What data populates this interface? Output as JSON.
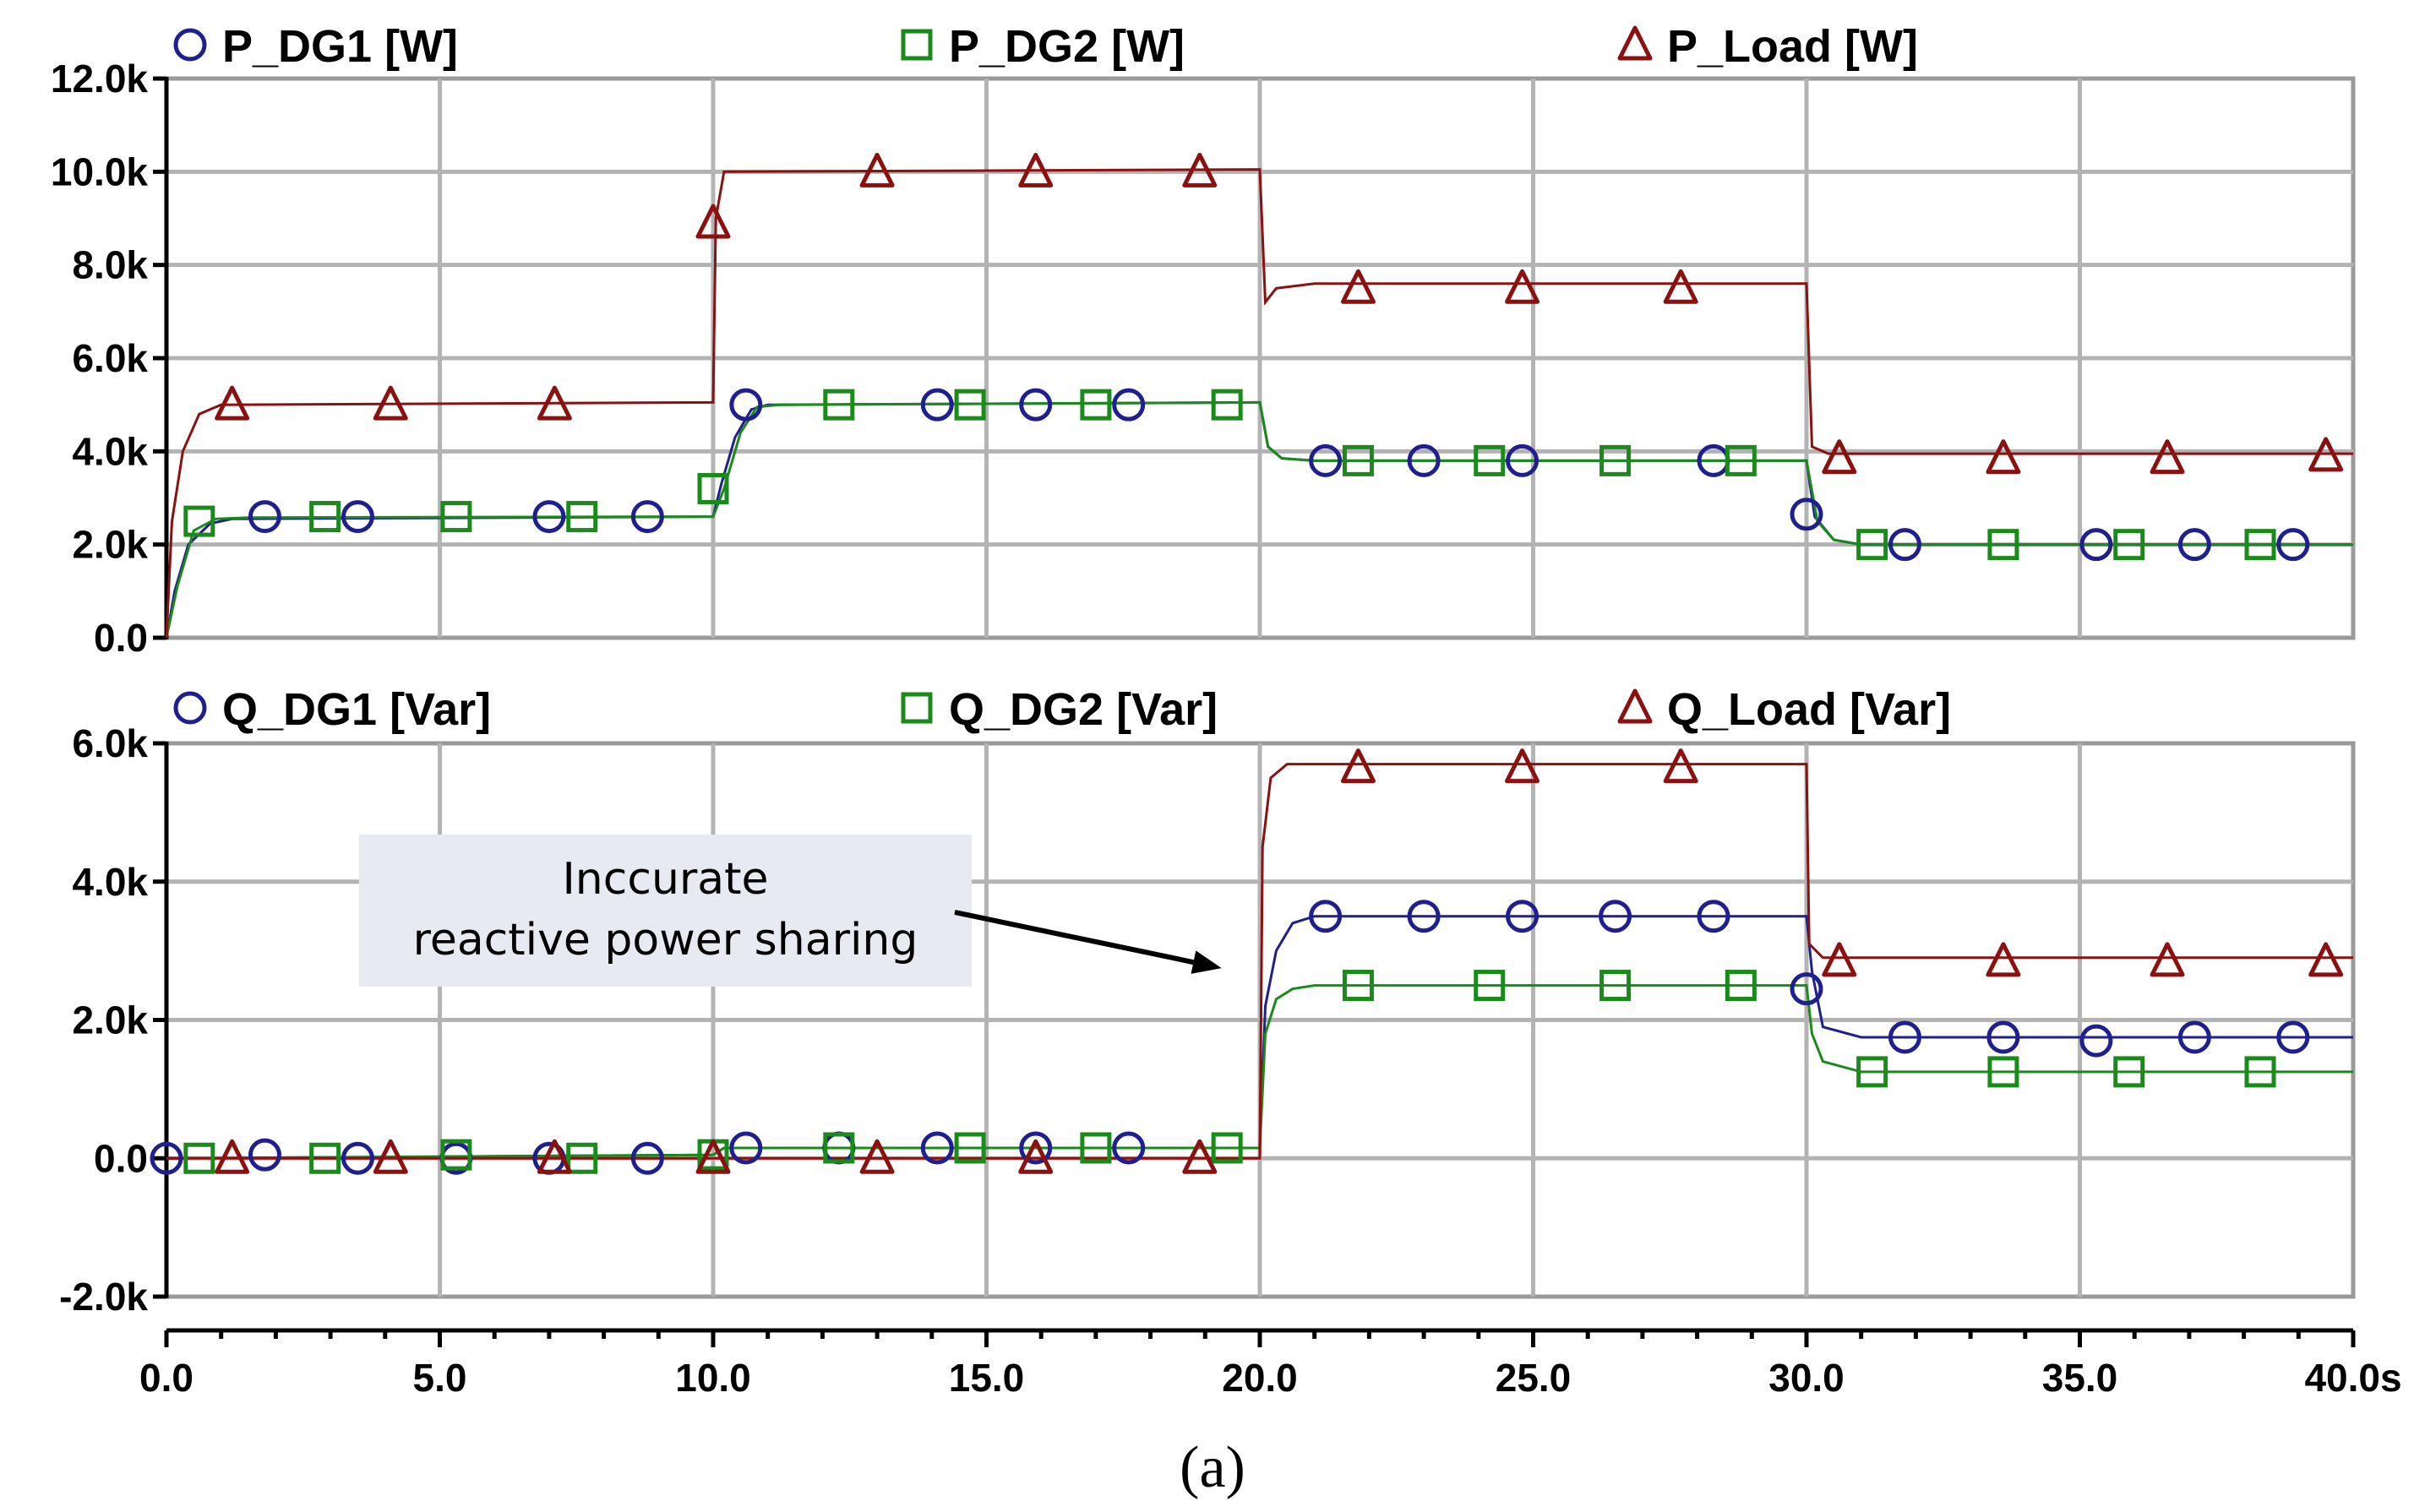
{
  "chart_data": [
    {
      "type": "line",
      "legend_position": "top",
      "x_range": [
        0,
        40
      ],
      "ylim": [
        0,
        12000
      ],
      "y_ticks": [
        {
          "value": 0,
          "label": "0.0"
        },
        {
          "value": 2000,
          "label": "2.0k"
        },
        {
          "value": 4000,
          "label": "4.0k"
        },
        {
          "value": 6000,
          "label": "6.0k"
        },
        {
          "value": 8000,
          "label": "8.0k"
        },
        {
          "value": 10000,
          "label": "10.0k"
        },
        {
          "value": 12000,
          "label": "12.0k"
        }
      ],
      "series": [
        {
          "name": "P_DG1 [W]",
          "color": "#1f1f8f",
          "marker": "circle",
          "line": [
            [
              0,
              0
            ],
            [
              0.15,
              1000
            ],
            [
              0.4,
              2000
            ],
            [
              0.8,
              2450
            ],
            [
              1.2,
              2550
            ],
            [
              10,
              2600
            ],
            [
              10.15,
              3300
            ],
            [
              10.4,
              4300
            ],
            [
              10.7,
              4900
            ],
            [
              11,
              5000
            ],
            [
              20,
              5050
            ],
            [
              20.15,
              4100
            ],
            [
              20.4,
              3850
            ],
            [
              21,
              3800
            ],
            [
              30,
              3800
            ],
            [
              30.15,
              2600
            ],
            [
              30.5,
              2100
            ],
            [
              31,
              2000
            ],
            [
              40,
              2000
            ]
          ],
          "markers": [
            [
              1.8,
              2600
            ],
            [
              3.5,
              2600
            ],
            [
              7,
              2600
            ],
            [
              8.8,
              2600
            ],
            [
              10.6,
              5000
            ],
            [
              14.1,
              5000
            ],
            [
              15.9,
              5000
            ],
            [
              17.6,
              5000
            ],
            [
              21.2,
              3800
            ],
            [
              23,
              3800
            ],
            [
              24.8,
              3800
            ],
            [
              28.3,
              3800
            ],
            [
              30,
              2650
            ],
            [
              31.8,
              2000
            ],
            [
              35.3,
              2000
            ],
            [
              37.1,
              2000
            ],
            [
              38.9,
              2000
            ]
          ]
        },
        {
          "name": "P_DG2 [W]",
          "color": "#1a8a1a",
          "marker": "square",
          "line": [
            [
              0,
              0
            ],
            [
              0.2,
              1100
            ],
            [
              0.5,
              2300
            ],
            [
              0.9,
              2550
            ],
            [
              1.5,
              2580
            ],
            [
              10,
              2600
            ],
            [
              10.2,
              3200
            ],
            [
              10.5,
              4400
            ],
            [
              10.8,
              4950
            ],
            [
              11.2,
              5000
            ],
            [
              20,
              5050
            ],
            [
              20.15,
              4100
            ],
            [
              20.4,
              3850
            ],
            [
              21,
              3800
            ],
            [
              30,
              3800
            ],
            [
              30.2,
              2500
            ],
            [
              30.5,
              2100
            ],
            [
              31,
              2000
            ],
            [
              40,
              2000
            ]
          ],
          "markers": [
            [
              0.6,
              2500
            ],
            [
              2.9,
              2600
            ],
            [
              5.3,
              2600
            ],
            [
              7.6,
              2600
            ],
            [
              10,
              3200
            ],
            [
              12.3,
              5000
            ],
            [
              14.7,
              5000
            ],
            [
              17,
              5000
            ],
            [
              19.4,
              5000
            ],
            [
              21.8,
              3800
            ],
            [
              24.2,
              3800
            ],
            [
              26.5,
              3800
            ],
            [
              28.8,
              3800
            ],
            [
              31.2,
              2000
            ],
            [
              33.6,
              2000
            ],
            [
              35.9,
              2000
            ],
            [
              38.3,
              2000
            ]
          ]
        },
        {
          "name": "P_Load [W]",
          "color": "#8b1010",
          "marker": "triangle",
          "line": [
            [
              0,
              0
            ],
            [
              0.1,
              2500
            ],
            [
              0.3,
              4000
            ],
            [
              0.6,
              4800
            ],
            [
              1,
              5000
            ],
            [
              10,
              5050
            ],
            [
              10.05,
              9000
            ],
            [
              10.2,
              10000
            ],
            [
              20,
              10050
            ],
            [
              20.1,
              7200
            ],
            [
              20.3,
              7500
            ],
            [
              21,
              7600
            ],
            [
              30,
              7600
            ],
            [
              30.1,
              4100
            ],
            [
              30.4,
              3950
            ],
            [
              40,
              3950
            ]
          ],
          "markers": [
            [
              1.2,
              5000
            ],
            [
              4.1,
              5000
            ],
            [
              7.1,
              5000
            ],
            [
              10,
              8900
            ],
            [
              13,
              10000
            ],
            [
              15.9,
              10000
            ],
            [
              18.9,
              10000
            ],
            [
              21.8,
              7500
            ],
            [
              24.8,
              7500
            ],
            [
              27.7,
              7500
            ],
            [
              30.6,
              3850
            ],
            [
              33.6,
              3850
            ],
            [
              36.6,
              3850
            ],
            [
              39.5,
              3900
            ]
          ]
        }
      ]
    },
    {
      "type": "line",
      "legend_position": "top",
      "x_range": [
        0,
        40
      ],
      "ylim": [
        -2000,
        6000
      ],
      "xlabel_ticks": [
        {
          "value": 0,
          "label": "0.0"
        },
        {
          "value": 5,
          "label": "5.0"
        },
        {
          "value": 10,
          "label": "10.0"
        },
        {
          "value": 15,
          "label": "15.0"
        },
        {
          "value": 20,
          "label": "20.0"
        },
        {
          "value": 25,
          "label": "25.0"
        },
        {
          "value": 30,
          "label": "30.0"
        },
        {
          "value": 35,
          "label": "35.0"
        },
        {
          "value": 40,
          "label": "40.0s"
        }
      ],
      "y_ticks": [
        {
          "value": -2000,
          "label": "-2.0k"
        },
        {
          "value": 0,
          "label": "0.0"
        },
        {
          "value": 2000,
          "label": "2.0k"
        },
        {
          "value": 4000,
          "label": "4.0k"
        },
        {
          "value": 6000,
          "label": "6.0k"
        }
      ],
      "series": [
        {
          "name": "Q_DG1 [Var]",
          "color": "#1f1f8f",
          "marker": "circle",
          "line": [
            [
              0,
              0
            ],
            [
              10,
              50
            ],
            [
              10.2,
              150
            ],
            [
              20,
              150
            ],
            [
              20.1,
              2200
            ],
            [
              20.3,
              3000
            ],
            [
              20.6,
              3400
            ],
            [
              21,
              3500
            ],
            [
              30,
              3500
            ],
            [
              30.1,
              2700
            ],
            [
              30.3,
              1900
            ],
            [
              31,
              1750
            ],
            [
              40,
              1750
            ]
          ],
          "markers": [
            [
              0,
              0
            ],
            [
              1.8,
              50
            ],
            [
              3.5,
              0
            ],
            [
              5.3,
              0
            ],
            [
              7,
              0
            ],
            [
              8.8,
              0
            ],
            [
              10.6,
              150
            ],
            [
              12.3,
              150
            ],
            [
              14.1,
              150
            ],
            [
              15.9,
              150
            ],
            [
              17.6,
              150
            ],
            [
              21.2,
              3500
            ],
            [
              23,
              3500
            ],
            [
              24.8,
              3500
            ],
            [
              26.5,
              3500
            ],
            [
              28.3,
              3500
            ],
            [
              30,
              2450
            ],
            [
              31.8,
              1750
            ],
            [
              33.6,
              1750
            ],
            [
              35.3,
              1700
            ],
            [
              37.1,
              1750
            ],
            [
              38.9,
              1750
            ]
          ]
        },
        {
          "name": "Q_DG2 [Var]",
          "color": "#1a8a1a",
          "marker": "square",
          "line": [
            [
              0,
              0
            ],
            [
              10,
              50
            ],
            [
              10.2,
              150
            ],
            [
              20,
              150
            ],
            [
              20.1,
              1800
            ],
            [
              20.3,
              2300
            ],
            [
              20.6,
              2450
            ],
            [
              21,
              2500
            ],
            [
              30,
              2500
            ],
            [
              30.1,
              1800
            ],
            [
              30.3,
              1400
            ],
            [
              31,
              1250
            ],
            [
              40,
              1250
            ]
          ],
          "markers": [
            [
              0.6,
              0
            ],
            [
              2.9,
              0
            ],
            [
              5.3,
              50
            ],
            [
              7.6,
              0
            ],
            [
              10,
              50
            ],
            [
              12.3,
              150
            ],
            [
              14.7,
              150
            ],
            [
              17,
              150
            ],
            [
              19.4,
              150
            ],
            [
              21.8,
              2500
            ],
            [
              24.2,
              2500
            ],
            [
              26.5,
              2500
            ],
            [
              28.8,
              2500
            ],
            [
              31.2,
              1250
            ],
            [
              33.6,
              1250
            ],
            [
              35.9,
              1250
            ],
            [
              38.3,
              1250
            ]
          ]
        },
        {
          "name": "Q_Load [Var]",
          "color": "#8b1010",
          "marker": "triangle",
          "line": [
            [
              0,
              0
            ],
            [
              20,
              0
            ],
            [
              20.05,
              4500
            ],
            [
              20.2,
              5500
            ],
            [
              20.5,
              5700
            ],
            [
              30,
              5700
            ],
            [
              30.05,
              3100
            ],
            [
              30.3,
              2900
            ],
            [
              40,
              2900
            ]
          ],
          "markers": [
            [
              1.2,
              0
            ],
            [
              4.1,
              0
            ],
            [
              7.1,
              0
            ],
            [
              10,
              0
            ],
            [
              13,
              0
            ],
            [
              15.9,
              0
            ],
            [
              18.9,
              0
            ],
            [
              21.8,
              5650
            ],
            [
              24.8,
              5650
            ],
            [
              27.7,
              5650
            ],
            [
              30.6,
              2850
            ],
            [
              33.6,
              2850
            ],
            [
              36.6,
              2850
            ],
            [
              39.5,
              2850
            ]
          ]
        }
      ],
      "annotations": [
        {
          "lines": [
            "Inccurate",
            "reactive power sharing"
          ],
          "arrow_to": [
            19.3,
            2750
          ]
        }
      ]
    }
  ],
  "caption": "(a)"
}
